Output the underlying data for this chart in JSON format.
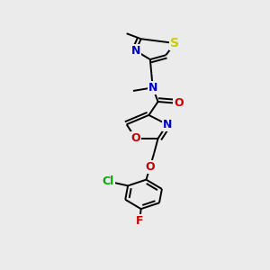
{
  "background_color": "#ebebeb",
  "figsize": [
    3.0,
    3.0
  ],
  "dpi": 100,
  "bond_lw": 1.4,
  "font_size": 9,
  "xlim": [
    0.1,
    0.9
  ],
  "ylim": [
    0.02,
    0.98
  ]
}
